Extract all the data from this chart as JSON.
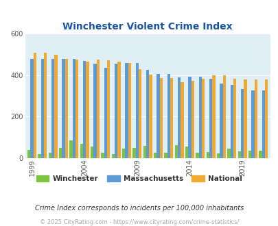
{
  "title": "Winchester Violent Crime Index",
  "years": [
    1999,
    2000,
    2001,
    2002,
    2003,
    2004,
    2005,
    2006,
    2007,
    2008,
    2009,
    2010,
    2011,
    2012,
    2013,
    2014,
    2015,
    2016,
    2017,
    2018,
    2019,
    2020,
    2021
  ],
  "winchester": [
    40,
    20,
    28,
    50,
    85,
    70,
    55,
    28,
    20,
    45,
    50,
    58,
    26,
    25,
    62,
    55,
    28,
    30,
    22,
    45,
    32,
    36,
    36
  ],
  "massachusetts": [
    478,
    478,
    480,
    480,
    478,
    470,
    455,
    435,
    455,
    460,
    460,
    425,
    405,
    405,
    390,
    393,
    395,
    383,
    360,
    353,
    335,
    328,
    328
  ],
  "national": [
    508,
    510,
    500,
    478,
    475,
    465,
    475,
    473,
    465,
    458,
    430,
    403,
    387,
    387,
    366,
    374,
    383,
    401,
    400,
    384,
    381,
    379,
    379
  ],
  "winchester_color": "#7dc241",
  "massachusetts_color": "#5b9bd5",
  "national_color": "#f0a830",
  "background_color": "#e0eff5",
  "title_color": "#1a56a0",
  "subtitle_color": "#333333",
  "footnote_color": "#aaaaaa",
  "subtitle": "Crime Index corresponds to incidents per 100,000 inhabitants",
  "footnote": "© 2025 CityRating.com - https://www.cityrating.com/crime-statistics/",
  "ylim": [
    0,
    600
  ],
  "yticks": [
    0,
    200,
    400,
    600
  ],
  "xtick_years": [
    1999,
    2004,
    2009,
    2014,
    2019
  ],
  "bar_width": 0.28
}
